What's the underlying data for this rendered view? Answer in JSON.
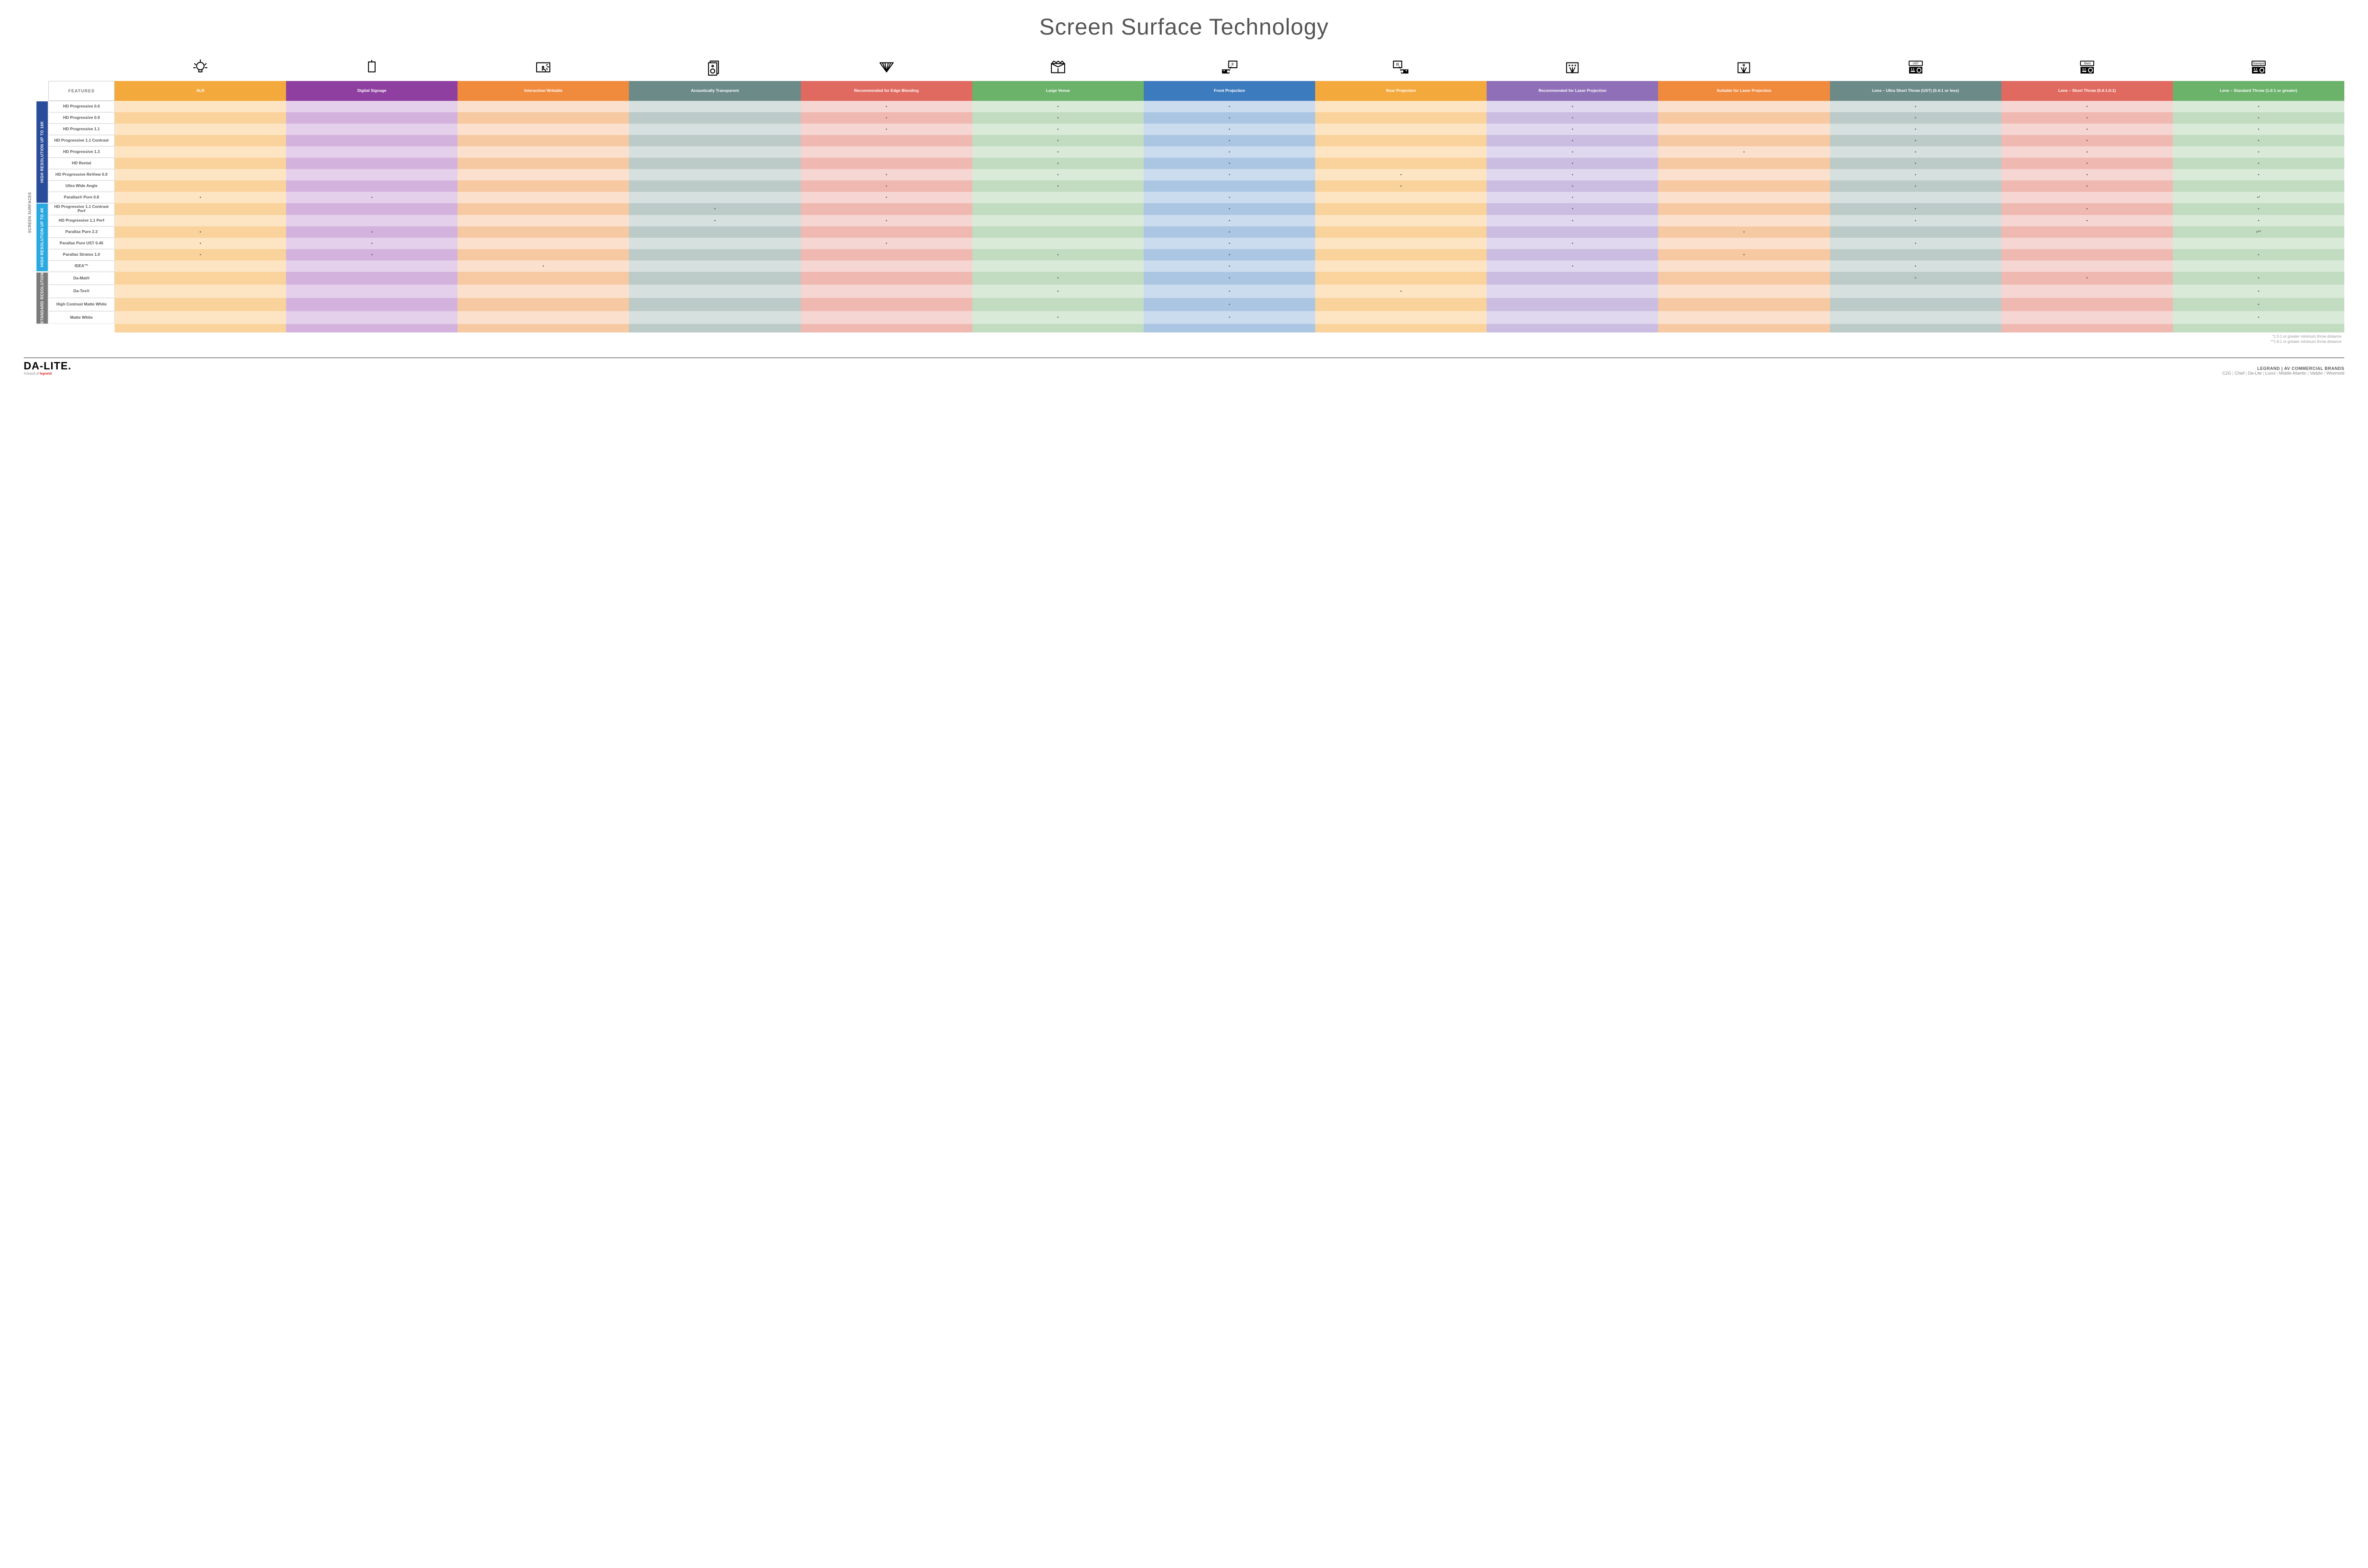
{
  "title": "Screen Surface Technology",
  "columns": [
    {
      "key": "alr",
      "label": "ALR",
      "color": "#f4a93c",
      "tints": [
        "#fde5c4",
        "#f9d39b"
      ]
    },
    {
      "key": "signage",
      "label": "Digital Signage",
      "color": "#8e3fa0",
      "tints": [
        "#e4d0ea",
        "#d3b3de"
      ]
    },
    {
      "key": "interactive",
      "label": "Interactive/ Writable",
      "color": "#f08a3c",
      "tints": [
        "#fbe1cd",
        "#f7c9a3"
      ]
    },
    {
      "key": "acoustic",
      "label": "Acoustically Transparent",
      "color": "#6b8a88",
      "tints": [
        "#d6e0df",
        "#bccac8"
      ]
    },
    {
      "key": "edge",
      "label": "Recommended for Edge Blending",
      "color": "#e06a5f",
      "tints": [
        "#f6d6d2",
        "#efb9b2"
      ]
    },
    {
      "key": "large",
      "label": "Large Venue",
      "color": "#6bb26a",
      "tints": [
        "#daead9",
        "#c1dcc0"
      ]
    },
    {
      "key": "front",
      "label": "Front Projection",
      "color": "#3d7bbf",
      "tints": [
        "#ccdcef",
        "#abc6e3"
      ]
    },
    {
      "key": "rear",
      "label": "Rear Projection",
      "color": "#f4a93c",
      "tints": [
        "#fde5c4",
        "#f9d39b"
      ]
    },
    {
      "key": "recLaser",
      "label": "Recommended for Laser Projection",
      "color": "#8e6fb8",
      "tints": [
        "#e0d8ee",
        "#cabde1"
      ]
    },
    {
      "key": "suitLaser",
      "label": "Suitable for Laser Projection",
      "color": "#f08a3c",
      "tints": [
        "#fbe1cd",
        "#f7c9a3"
      ]
    },
    {
      "key": "ust",
      "label": "Lens – Ultra Short Throw (UST) (0.4:1 or less)",
      "color": "#6b8a88",
      "tints": [
        "#d6e0df",
        "#bccac8"
      ]
    },
    {
      "key": "short",
      "label": "Lens – Short Throw (0.4-1.0:1)",
      "color": "#e06a5f",
      "tints": [
        "#f6d6d2",
        "#efb9b2"
      ]
    },
    {
      "key": "std",
      "label": "Lens – Standard Throw (1.0:1 or greater)",
      "color": "#6bb26a",
      "tints": [
        "#daead9",
        "#c1dcc0"
      ]
    }
  ],
  "iconMap": {
    "alr": "bulb",
    "signage": "signage",
    "interactive": "touch",
    "acoustic": "speaker",
    "edge": "blend",
    "large": "venue",
    "front": "front",
    "rear": "rear",
    "recLaser": "laser3",
    "suitLaser": "laser1",
    "ust": "projUST",
    "short": "projShort",
    "std": "projStd"
  },
  "groups": [
    {
      "label": "HIGH RESOLUTION UP TO 16K",
      "color": "#2a4d9b",
      "rows": [
        {
          "name": "HD Progressive 0.6",
          "dots": {
            "edge": "•",
            "large": "•",
            "front": "•",
            "recLaser": "•",
            "ust": "•",
            "short": "•",
            "std": "•"
          }
        },
        {
          "name": "HD Progressive 0.9",
          "dots": {
            "edge": "•",
            "large": "•",
            "front": "•",
            "recLaser": "•",
            "ust": "•",
            "short": "•",
            "std": "•"
          }
        },
        {
          "name": "HD Progressive 1.1",
          "dots": {
            "edge": "•",
            "large": "•",
            "front": "•",
            "recLaser": "•",
            "ust": "•",
            "short": "•",
            "std": "•"
          }
        },
        {
          "name": "HD Progressive 1.1 Contrast",
          "dots": {
            "large": "•",
            "front": "•",
            "recLaser": "•",
            "ust": "•",
            "short": "•",
            "std": "•"
          }
        },
        {
          "name": "HD Progressive 1.3",
          "dots": {
            "large": "•",
            "front": "•",
            "recLaser": "•",
            "suitLaser": "•",
            "ust": "•",
            "short": "•",
            "std": "•"
          }
        },
        {
          "name": "HD Rental",
          "dots": {
            "large": "•",
            "front": "•",
            "recLaser": "•",
            "ust": "•",
            "short": "•",
            "std": "•"
          }
        },
        {
          "name": "HD Progressive ReView 0.9",
          "dots": {
            "edge": "•",
            "large": "•",
            "front": "•",
            "rear": "•",
            "recLaser": "•",
            "ust": "•",
            "short": "•",
            "std": "•"
          }
        },
        {
          "name": "Ultra Wide Angle",
          "dots": {
            "edge": "•",
            "large": "•",
            "rear": "•",
            "recLaser": "•",
            "ust": "•",
            "short": "•"
          }
        },
        {
          "name": "Parallax® Pure 0.8",
          "dots": {
            "alr": "•",
            "signage": "•",
            "edge": "•",
            "front": "•",
            "recLaser": "•",
            "std": "•*"
          }
        }
      ]
    },
    {
      "label": "HIGH RESOLUTION UP TO 4K",
      "color": "#2aa8e0",
      "rows": [
        {
          "name": "HD Progressive 1.1 Contrast Perf",
          "dots": {
            "acoustic": "•",
            "front": "•",
            "recLaser": "•",
            "ust": "•",
            "short": "•",
            "std": "•"
          }
        },
        {
          "name": "HD Progressive 1.1 Perf",
          "dots": {
            "acoustic": "•",
            "edge": "•",
            "front": "•",
            "recLaser": "•",
            "ust": "•",
            "short": "•",
            "std": "•"
          }
        },
        {
          "name": "Parallax Pure 2.3",
          "dots": {
            "alr": "•",
            "signage": "•",
            "front": "•",
            "suitLaser": "•",
            "std": "•**"
          }
        },
        {
          "name": "Parallax Pure UST 0.45",
          "dots": {
            "alr": "•",
            "signage": "•",
            "edge": "•",
            "front": "•",
            "recLaser": "•",
            "ust": "•"
          }
        },
        {
          "name": "Parallax Stratos 1.0",
          "dots": {
            "alr": "•",
            "signage": "•",
            "large": "•",
            "front": "•",
            "suitLaser": "•",
            "std": "•"
          }
        },
        {
          "name": "IDEA™",
          "dots": {
            "interactive": "•",
            "front": "•",
            "recLaser": "•",
            "ust": "•"
          }
        }
      ]
    },
    {
      "label": "STANDARD RESOLUTION",
      "color": "#7a7a7a",
      "rows": [
        {
          "name": "Da-Mat®",
          "dots": {
            "large": "•",
            "front": "•",
            "ust": "•",
            "short": "•",
            "std": "•"
          }
        },
        {
          "name": "Da-Tex®",
          "dots": {
            "large": "•",
            "front": "•",
            "rear": "•",
            "std": "•"
          }
        },
        {
          "name": "High Contrast Matte White",
          "dots": {
            "front": "•",
            "std": "•"
          }
        },
        {
          "name": "Matte White",
          "dots": {
            "large": "•",
            "front": "•",
            "std": "•"
          }
        }
      ]
    }
  ],
  "sideLabel": "SCREEN SURFACES",
  "featuresHeader": "FEATURES",
  "footnotes": [
    "*1.5:1 or greater minimum throw distance",
    "**1.8:1 or greater minimum throw distance"
  ],
  "footer": {
    "brand": "DA-LITE.",
    "brandSubPrefix": "A brand of ",
    "brandSubLogo": "legrand",
    "rightTop": "LEGRAND | AV COMMERCIAL BRANDS",
    "brands": [
      "C2G",
      "Chief",
      "Da-Lite",
      "Luxul",
      "Middle Atlantic",
      "Vaddio",
      "Wiremold"
    ]
  }
}
